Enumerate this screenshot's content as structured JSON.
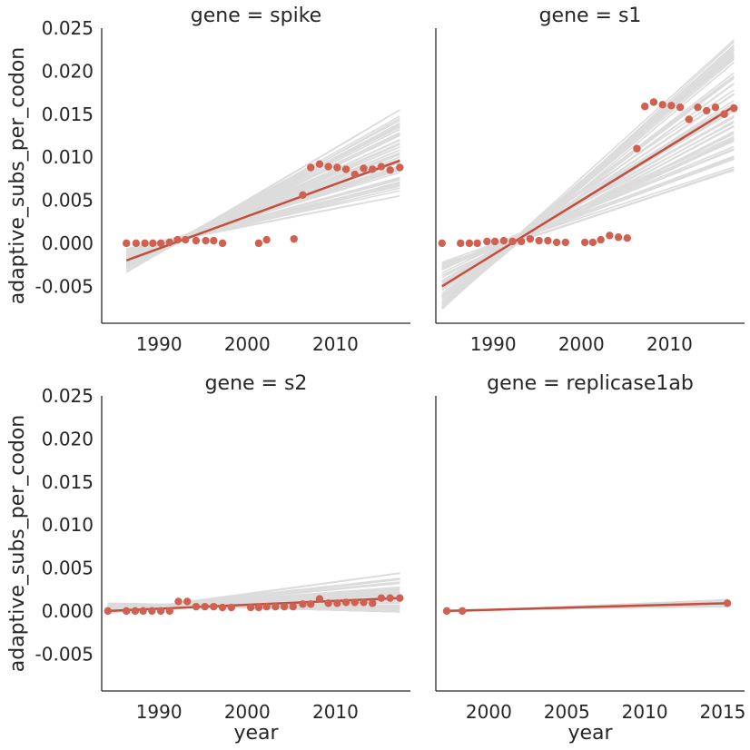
{
  "chart_data": [
    {
      "type": "scatter",
      "title": "gene = spike",
      "xlabel": "",
      "ylabel": "adaptive_subs_per_codon",
      "xlim": [
        1983.5,
        2018.5
      ],
      "ylim": [
        -0.0093,
        0.025
      ],
      "xticks": [
        1990,
        2000,
        2010
      ],
      "xtick_labels": [
        "1990",
        "2000",
        "2010"
      ],
      "yticks": [
        -0.005,
        0.0,
        0.005,
        0.01,
        0.015,
        0.02,
        0.025
      ],
      "ytick_labels": [
        "-0.005",
        "0.000",
        "0.005",
        "0.010",
        "0.015",
        "0.020",
        "0.025"
      ],
      "points": {
        "x": [
          1986.3,
          1987.4,
          1988.4,
          1989.3,
          1990.2,
          1991.2,
          1992.1,
          1993.0,
          1994.2,
          1995.3,
          1996.2,
          1997.2,
          2001.3,
          2002.2,
          2005.3,
          2006.3,
          2007.2,
          2008.2,
          2009.2,
          2010.2,
          2011.2,
          2012.2,
          2013.2,
          2014.2,
          2015.2,
          2016.2,
          2017.3
        ],
        "y": [
          0.0,
          0.0,
          0.0,
          0.0,
          0.0,
          0.0001,
          0.0004,
          0.0004,
          0.0003,
          0.0003,
          0.0003,
          0.0,
          0.0,
          0.0004,
          0.0005,
          0.0056,
          0.0088,
          0.0092,
          0.0089,
          0.0088,
          0.0086,
          0.008,
          0.0087,
          0.0086,
          0.0089,
          0.0085,
          0.0088
        ]
      },
      "fit": {
        "x": [
          1986.3,
          2017.3
        ],
        "y": [
          -0.002,
          0.0096
        ]
      },
      "bootstrap_end_range": {
        "start": [
          -0.0034,
          -0.0006
        ],
        "end": [
          0.0055,
          0.0155
        ]
      }
    },
    {
      "type": "scatter",
      "title": "gene = s1",
      "xlabel": "",
      "ylabel": "",
      "xlim": [
        1983.5,
        2018.5
      ],
      "ylim": [
        -0.0093,
        0.025
      ],
      "xticks": [
        1990,
        2000,
        2010
      ],
      "xtick_labels": [
        "1990",
        "2000",
        "2010"
      ],
      "yticks": [],
      "ytick_labels": [],
      "points": {
        "x": [
          1984.2,
          1986.3,
          1987.3,
          1988.2,
          1989.3,
          1990.2,
          1991.2,
          1992.2,
          1993.2,
          1994.2,
          1995.2,
          1996.2,
          1997.2,
          1998.2,
          2000.4,
          2001.3,
          2002.2,
          2003.2,
          2004.2,
          2005.2,
          2006.3,
          2007.2,
          2008.2,
          2009.2,
          2010.2,
          2011.2,
          2012.2,
          2013.2,
          2014.2,
          2015.2,
          2016.2,
          2017.3
        ],
        "y": [
          0.0,
          0.0,
          0.0,
          0.0,
          0.0002,
          0.0002,
          0.0003,
          0.0002,
          0.0002,
          0.0005,
          0.0003,
          0.0003,
          0.0001,
          0.0001,
          0.0001,
          0.0001,
          0.0004,
          0.0009,
          0.0007,
          0.0006,
          0.011,
          0.0159,
          0.0164,
          0.0161,
          0.016,
          0.0158,
          0.0144,
          0.0158,
          0.0154,
          0.0158,
          0.015,
          0.0157
        ]
      },
      "fit": {
        "x": [
          1984.2,
          2017.3
        ],
        "y": [
          -0.005,
          0.0159
        ]
      },
      "bootstrap_end_range": {
        "start": [
          -0.0077,
          -0.0022
        ],
        "end": [
          0.0085,
          0.0238
        ]
      }
    },
    {
      "type": "scatter",
      "title": "gene = s2",
      "xlabel": "year",
      "ylabel": "adaptive_subs_per_codon",
      "xlim": [
        1983.5,
        2018.5
      ],
      "ylim": [
        -0.0093,
        0.025
      ],
      "xticks": [
        1990,
        2000,
        2010
      ],
      "xtick_labels": [
        "1990",
        "2000",
        "2010"
      ],
      "yticks": [
        -0.005,
        0.0,
        0.005,
        0.01,
        0.015,
        0.02,
        0.025
      ],
      "ytick_labels": [
        "-0.005",
        "0.000",
        "0.005",
        "0.010",
        "0.015",
        "0.020",
        "0.025"
      ],
      "points": {
        "x": [
          1984.2,
          1986.3,
          1987.3,
          1988.2,
          1989.2,
          1990.2,
          1991.2,
          1992.2,
          1993.2,
          1994.2,
          1995.2,
          1996.2,
          1997.2,
          1998.2,
          2000.4,
          2001.3,
          2002.2,
          2003.2,
          2004.2,
          2005.2,
          2006.3,
          2007.2,
          2008.2,
          2009.2,
          2010.2,
          2011.2,
          2012.2,
          2013.2,
          2014.2,
          2015.2,
          2016.2,
          2017.3
        ],
        "y": [
          0.0,
          0.0,
          0.0,
          0.0,
          0.0,
          0.0,
          0.0,
          0.0011,
          0.0011,
          0.0005,
          0.0005,
          0.0005,
          0.0004,
          0.0004,
          0.0004,
          0.0004,
          0.0005,
          0.0005,
          0.0005,
          0.0005,
          0.0008,
          0.0008,
          0.0014,
          0.0009,
          0.0009,
          0.001,
          0.001,
          0.001,
          0.0009,
          0.0015,
          0.0015,
          0.0015
        ]
      },
      "fit": {
        "x": [
          1984.2,
          2017.3
        ],
        "y": [
          0.0,
          0.0015
        ]
      },
      "bootstrap_end_range": {
        "start": [
          -0.0003,
          0.0009
        ],
        "end": [
          -0.0001,
          0.0044
        ]
      }
    },
    {
      "type": "scatter",
      "title": "gene = replicase1ab",
      "xlabel": "year",
      "ylabel": "",
      "xlim": [
        1996.6,
        2016.4
      ],
      "ylim": [
        -0.0093,
        0.025
      ],
      "xticks": [
        2000,
        2005,
        2010,
        2015
      ],
      "xtick_labels": [
        "2000",
        "2005",
        "2010",
        "2015"
      ],
      "yticks": [],
      "ytick_labels": [],
      "points": {
        "x": [
          1997.3,
          1998.3,
          2015.3
        ],
        "y": [
          0.0,
          0.0,
          0.0009
        ]
      },
      "fit": {
        "x": [
          1997.3,
          2015.3
        ],
        "y": [
          0.0,
          0.0009
        ]
      },
      "bootstrap_end_range": {
        "start": [
          -0.0001,
          0.0001
        ],
        "end": [
          0.0005,
          0.0013
        ]
      }
    }
  ]
}
